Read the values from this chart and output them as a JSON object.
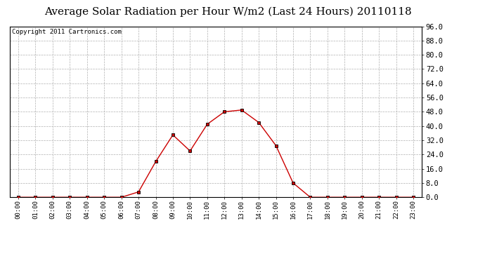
{
  "title": "Average Solar Radiation per Hour W/m2 (Last 24 Hours) 20110118",
  "copyright_text": "Copyright 2011 Cartronics.com",
  "hours": [
    "00:00",
    "01:00",
    "02:00",
    "03:00",
    "04:00",
    "05:00",
    "06:00",
    "07:00",
    "08:00",
    "09:00",
    "10:00",
    "11:00",
    "12:00",
    "13:00",
    "14:00",
    "15:00",
    "16:00",
    "17:00",
    "18:00",
    "19:00",
    "20:00",
    "21:00",
    "22:00",
    "23:00"
  ],
  "values": [
    0.0,
    0.0,
    0.0,
    0.0,
    0.0,
    0.0,
    0.0,
    3.0,
    20.0,
    35.0,
    26.0,
    41.0,
    48.0,
    49.0,
    42.0,
    29.0,
    8.0,
    0.0,
    0.0,
    0.0,
    0.0,
    0.0,
    0.0,
    0.0
  ],
  "line_color": "#cc0000",
  "marker_color": "#000000",
  "bg_color": "#ffffff",
  "plot_bg_color": "#ffffff",
  "grid_color": "#b0b0b0",
  "ylim": [
    0.0,
    96.0
  ],
  "yticks": [
    0.0,
    8.0,
    16.0,
    24.0,
    32.0,
    40.0,
    48.0,
    56.0,
    64.0,
    72.0,
    80.0,
    88.0,
    96.0
  ],
  "title_fontsize": 11,
  "copyright_fontsize": 6.5,
  "tick_fontsize": 6.5,
  "y_tick_fontsize": 7.5
}
